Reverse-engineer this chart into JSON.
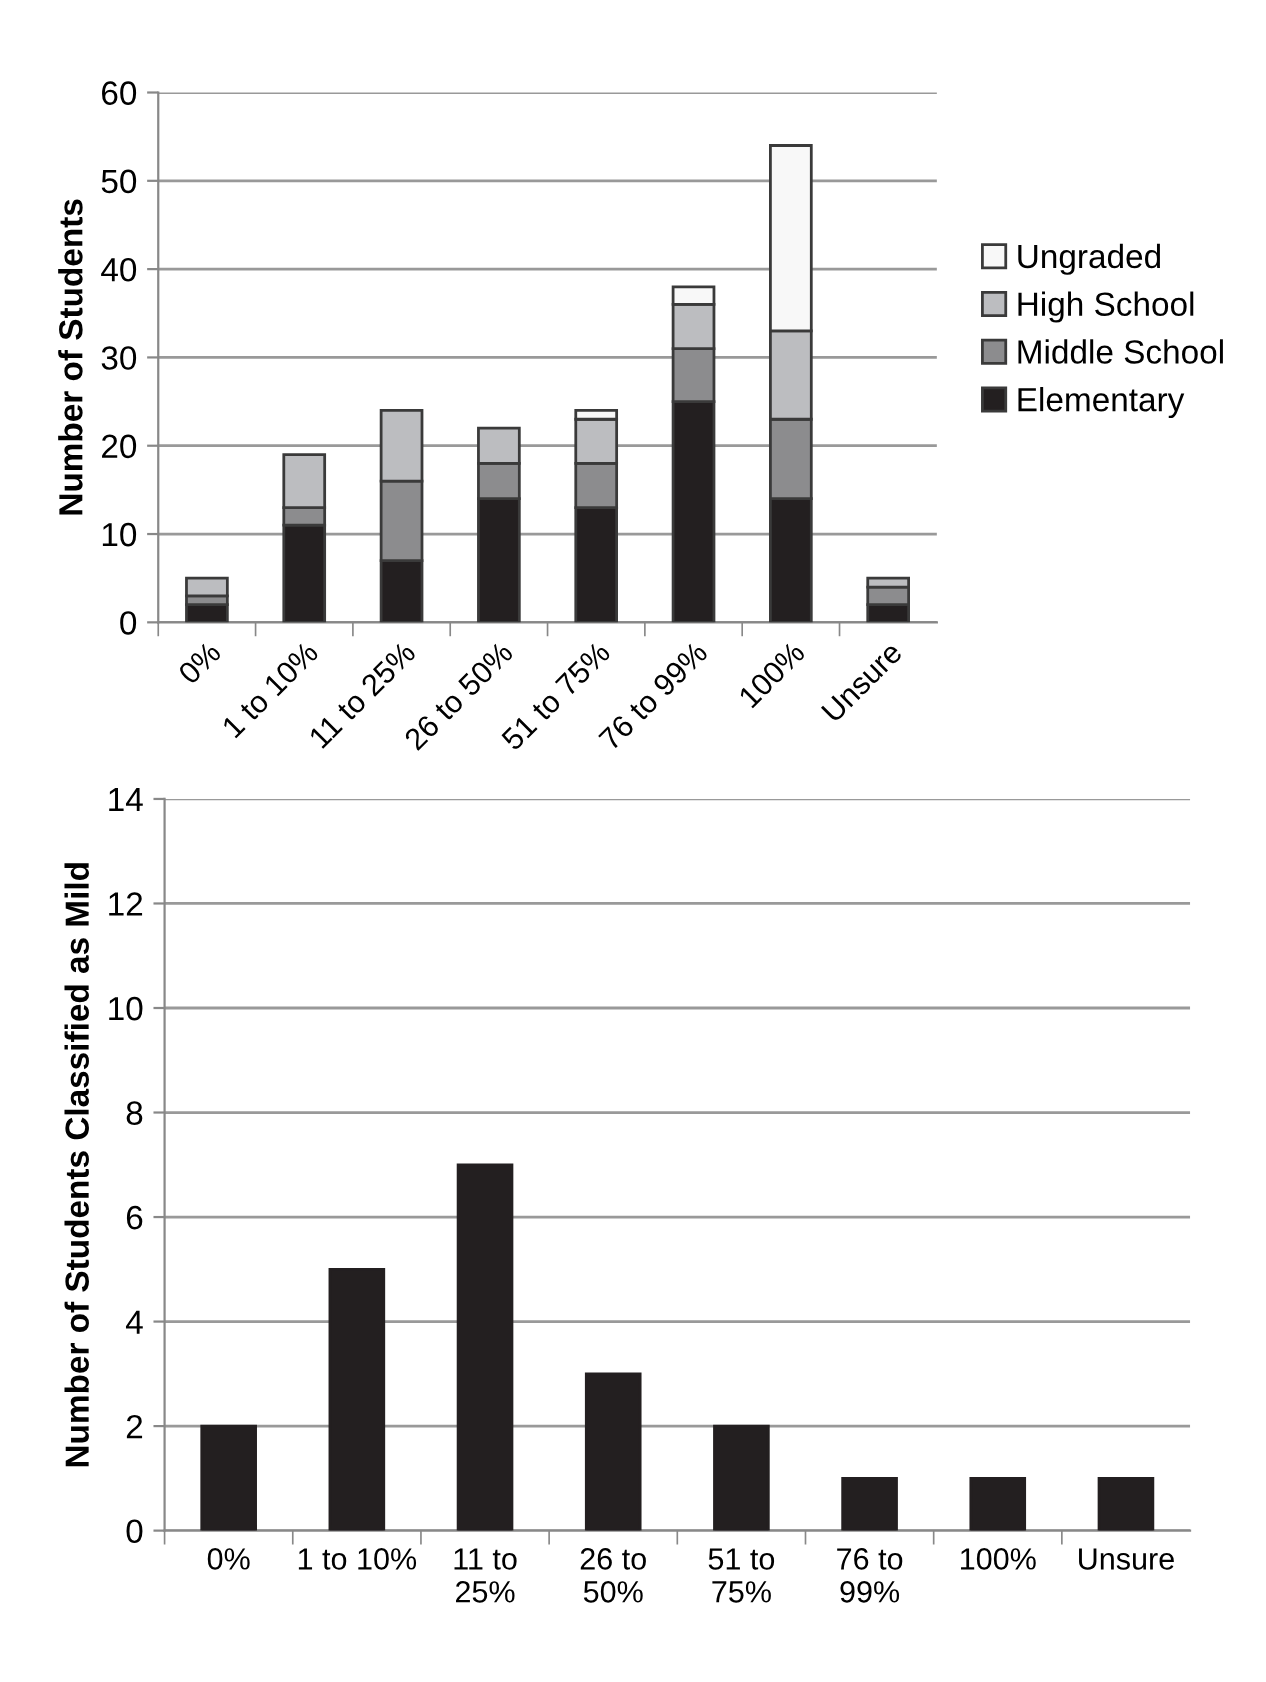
{
  "chart_data": [
    {
      "type": "bar",
      "stacked": true,
      "ylabel": "Number of Students",
      "categories": [
        "0%",
        "1 to 10%",
        "11 to 25%",
        "26 to 50%",
        "51 to 75%",
        "76 to 99%",
        "100%",
        "Unsure"
      ],
      "series": [
        {
          "name": "Elementary",
          "color": "#231f20",
          "values": [
            2,
            11,
            7,
            14,
            13,
            25,
            14,
            2
          ]
        },
        {
          "name": "Middle School",
          "color": "#8c8c8e",
          "values": [
            1,
            2,
            9,
            4,
            5,
            6,
            9,
            2
          ]
        },
        {
          "name": "High School",
          "color": "#bcbdc0",
          "values": [
            2,
            6,
            8,
            4,
            5,
            5,
            10,
            1
          ]
        },
        {
          "name": "Ungraded",
          "color": "#f8f8f8",
          "values": [
            0,
            0,
            0,
            0,
            1,
            2,
            21,
            0
          ]
        }
      ],
      "ylim": [
        0,
        60
      ],
      "yticks": [
        0,
        10,
        20,
        30,
        40,
        50,
        60
      ],
      "grid": "y",
      "legend": "right"
    },
    {
      "type": "bar",
      "ylabel": "Number of Students Classified as Mild",
      "categories": [
        "0%",
        "1 to 10%",
        "11 to\n25%",
        "26 to\n50%",
        "51 to\n75%",
        "76 to\n99%",
        "100%",
        "Unsure"
      ],
      "series": [
        {
          "color": "#231f20",
          "values": [
            2,
            5,
            7,
            3,
            2,
            1,
            1,
            1
          ]
        }
      ],
      "ylim": [
        0,
        14
      ],
      "yticks": [
        0,
        2,
        4,
        6,
        8,
        10,
        12,
        14
      ],
      "grid": "y"
    }
  ]
}
